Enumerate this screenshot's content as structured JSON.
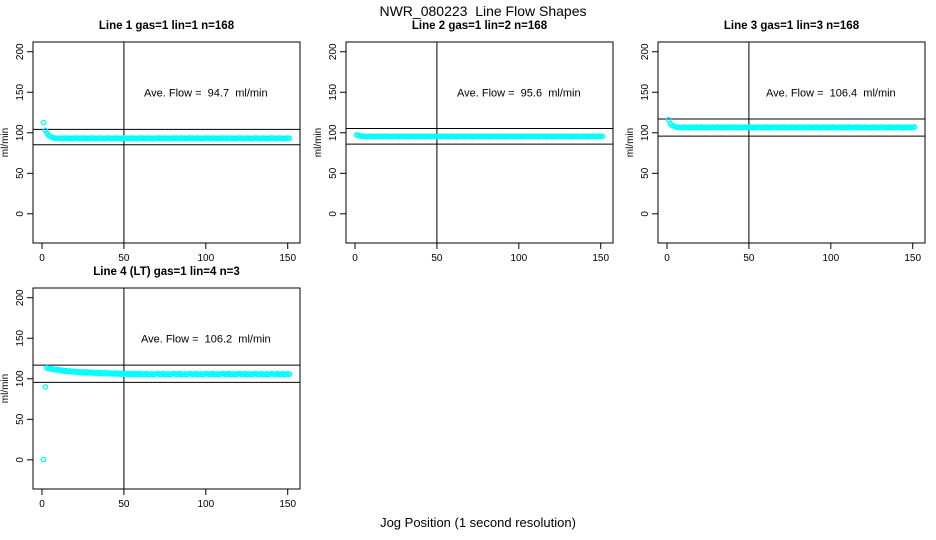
{
  "figure": {
    "title": "NWR_080223  Line Flow Shapes",
    "xlabel": "Jog Position (1 second resolution)",
    "ylabel": "ml/min",
    "point_color": "#00FFFF",
    "line_color": "#000000",
    "background": "#FFFFFF"
  },
  "chart_data": [
    {
      "type": "scatter",
      "title": "Line 1 gas=1 lin=1 n=168",
      "annotation": "Ave. Flow =  94.7  ml/min",
      "annotation_xy": [
        100,
        150
      ],
      "ave_flow": 94.7,
      "ylabel": "ml/min",
      "xlim": [
        -5.5,
        157.5
      ],
      "ylim": [
        -36,
        212
      ],
      "xticks": [
        0,
        50,
        100,
        150
      ],
      "yticks": [
        0,
        50,
        100,
        150,
        200
      ],
      "vline_x": 50,
      "ref_lines": [
        104.2,
        85.2
      ],
      "x_start": 1,
      "x_step": 1,
      "y": [
        112.5,
        103.0,
        99.5,
        97.0,
        95.5,
        94.5,
        93.8,
        93.4,
        93.1,
        92.9,
        93.0,
        93.4,
        92.7,
        93.2,
        93.6,
        92.8,
        93.3,
        92.6,
        93.1,
        93.5,
        93.0,
        93.4,
        92.7,
        93.2,
        93.6,
        92.8,
        93.3,
        92.6,
        93.1,
        93.5,
        93.0,
        93.4,
        92.7,
        93.2,
        93.6,
        92.8,
        93.3,
        92.6,
        93.1,
        93.5,
        93.0,
        93.4,
        92.7,
        93.2,
        93.6,
        92.8,
        93.3,
        92.6,
        93.1,
        93.5,
        93.0,
        93.4,
        92.7,
        93.2,
        93.6,
        92.8,
        93.3,
        92.6,
        93.1,
        93.5,
        93.0,
        93.4,
        92.7,
        93.2,
        93.6,
        92.8,
        93.3,
        92.6,
        93.1,
        93.5,
        93.0,
        93.4,
        92.7,
        93.2,
        93.6,
        92.8,
        93.3,
        92.6,
        93.1,
        93.5,
        93.0,
        93.4,
        92.7,
        93.2,
        93.6,
        92.8,
        93.3,
        92.6,
        93.1,
        93.5,
        93.0,
        93.4,
        92.7,
        93.2,
        93.6,
        92.8,
        93.3,
        92.6,
        93.1,
        93.5,
        93.0,
        93.4,
        92.7,
        93.2,
        93.6,
        92.8,
        93.3,
        92.6,
        93.1,
        93.5,
        93.0,
        93.4,
        92.7,
        93.2,
        93.6,
        92.8,
        93.3,
        92.6,
        93.1,
        93.5,
        93.0,
        93.4,
        92.7,
        93.2,
        93.6,
        92.8,
        93.3,
        92.6,
        93.1,
        93.5,
        93.0,
        93.4,
        92.7,
        93.2,
        93.6,
        92.8,
        93.3,
        92.6,
        93.1,
        93.5,
        93.0,
        93.4,
        92.7,
        93.2,
        93.6,
        92.8,
        93.3,
        92.6,
        93.1,
        93.5,
        93.0
      ]
    },
    {
      "type": "scatter",
      "title": "Line 2 gas=1 lin=2 n=168",
      "annotation": "Ave. Flow =  95.6  ml/min",
      "annotation_xy": [
        100,
        150
      ],
      "ave_flow": 95.6,
      "ylabel": "ml/min",
      "xlim": [
        -5.5,
        157.5
      ],
      "ylim": [
        -36,
        212
      ],
      "xticks": [
        0,
        50,
        100,
        150
      ],
      "yticks": [
        0,
        50,
        100,
        150,
        200
      ],
      "vline_x": 50,
      "ref_lines": [
        105.2,
        86.0
      ],
      "x_start": 1,
      "x_step": 1,
      "y": [
        97.2,
        96.6,
        96.2,
        95.9,
        95.5,
        95.8,
        95.3,
        95.6,
        95.9,
        95.4,
        95.7,
        95.2,
        95.5,
        95.8,
        95.5,
        95.8,
        95.3,
        95.6,
        95.9,
        95.4,
        95.7,
        95.2,
        95.5,
        95.8,
        95.5,
        95.8,
        95.3,
        95.6,
        95.9,
        95.4,
        95.7,
        95.2,
        95.5,
        95.8,
        95.5,
        95.8,
        95.3,
        95.6,
        95.9,
        95.4,
        95.7,
        95.2,
        95.5,
        95.8,
        95.5,
        95.8,
        95.3,
        95.6,
        95.9,
        95.4,
        95.7,
        95.2,
        95.5,
        95.8,
        95.5,
        95.8,
        95.3,
        95.6,
        95.9,
        95.4,
        95.7,
        95.2,
        95.5,
        95.8,
        95.5,
        95.8,
        95.3,
        95.6,
        95.9,
        95.4,
        95.7,
        95.2,
        95.5,
        95.8,
        95.5,
        95.8,
        95.3,
        95.6,
        95.9,
        95.4,
        95.7,
        95.2,
        95.5,
        95.8,
        95.5,
        95.8,
        95.3,
        95.6,
        95.9,
        95.4,
        95.7,
        95.2,
        95.5,
        95.8,
        95.5,
        95.8,
        95.3,
        95.6,
        95.9,
        95.4,
        95.7,
        95.2,
        95.5,
        95.8,
        95.5,
        95.8,
        95.3,
        95.6,
        95.9,
        95.4,
        95.7,
        95.2,
        95.5,
        95.8,
        95.5,
        95.8,
        95.3,
        95.6,
        95.9,
        95.4,
        95.7,
        95.2,
        95.5,
        95.8,
        95.5,
        95.8,
        95.3,
        95.6,
        95.9,
        95.4,
        95.7,
        95.2,
        95.5,
        95.8,
        95.5,
        95.8,
        95.3,
        95.6,
        95.9,
        95.4,
        95.7,
        95.2,
        95.5,
        95.8,
        95.5,
        95.8,
        95.3,
        95.6,
        95.9,
        95.4,
        95.7
      ]
    },
    {
      "type": "scatter",
      "title": "Line 3 gas=1 lin=3 n=168",
      "annotation": "Ave. Flow =  106.4  ml/min",
      "annotation_xy": [
        100,
        150
      ],
      "ave_flow": 106.4,
      "ylabel": "ml/min",
      "xlim": [
        -5.5,
        157.5
      ],
      "ylim": [
        -36,
        212
      ],
      "xticks": [
        0,
        50,
        100,
        150
      ],
      "yticks": [
        0,
        50,
        100,
        150,
        200
      ],
      "vline_x": 50,
      "ref_lines": [
        117.0,
        95.8
      ],
      "x_start": 1,
      "x_step": 1,
      "y": [
        116.0,
        111.5,
        109.5,
        108.3,
        107.5,
        107.0,
        106.5,
        106.9,
        106.2,
        106.7,
        107.1,
        106.3,
        106.8,
        106.1,
        106.6,
        107.0,
        106.5,
        106.9,
        106.2,
        106.7,
        107.1,
        106.3,
        106.8,
        106.1,
        106.6,
        107.0,
        106.5,
        106.9,
        106.2,
        106.7,
        107.1,
        106.3,
        106.8,
        106.1,
        106.6,
        107.0,
        106.5,
        106.9,
        106.2,
        106.7,
        107.1,
        106.3,
        106.8,
        106.1,
        106.6,
        107.0,
        106.5,
        106.9,
        106.2,
        106.7,
        107.1,
        106.3,
        106.8,
        106.1,
        106.6,
        107.0,
        106.5,
        106.9,
        106.2,
        106.7,
        107.1,
        106.3,
        106.8,
        106.1,
        106.6,
        107.0,
        106.5,
        106.9,
        106.2,
        106.7,
        107.1,
        106.3,
        106.8,
        106.1,
        106.6,
        107.0,
        106.5,
        106.9,
        106.2,
        106.7,
        107.1,
        106.3,
        106.8,
        106.1,
        106.6,
        107.0,
        106.5,
        106.9,
        106.2,
        106.7,
        107.1,
        106.3,
        106.8,
        106.1,
        106.6,
        107.0,
        106.5,
        106.9,
        106.2,
        106.7,
        107.1,
        106.3,
        106.8,
        106.1,
        106.6,
        107.0,
        106.5,
        106.9,
        106.2,
        106.7,
        107.1,
        106.3,
        106.8,
        106.1,
        106.6,
        107.0,
        106.5,
        106.9,
        106.2,
        106.7,
        107.1,
        106.3,
        106.8,
        106.1,
        106.6,
        107.0,
        106.5,
        106.9,
        106.2,
        106.7,
        107.1,
        106.3,
        106.8,
        106.1,
        106.6,
        107.0,
        106.5,
        106.9,
        106.2,
        106.7,
        107.1,
        106.3,
        106.8,
        106.1,
        106.6,
        107.0,
        106.5,
        106.9,
        106.2,
        106.7,
        107.1
      ]
    },
    {
      "type": "scatter",
      "title": "Line 4 (LT) gas=1 lin=4 n=3",
      "annotation": "Ave. Flow =  106.2  ml/min",
      "annotation_xy": [
        100,
        150
      ],
      "ave_flow": 106.2,
      "ylabel": "ml/min",
      "xlim": [
        -5.5,
        157.5
      ],
      "ylim": [
        -36,
        212
      ],
      "xticks": [
        0,
        50,
        100,
        150
      ],
      "yticks": [
        0,
        50,
        100,
        150,
        200
      ],
      "vline_x": 50,
      "ref_lines": [
        116.8,
        95.6
      ],
      "x_start": 1,
      "x_step": 1,
      "y": [
        0.3,
        90.0,
        113.5,
        112.4,
        112.8,
        111.6,
        112.0,
        111.0,
        111.4,
        110.6,
        110.9,
        109.6,
        110.4,
        109.2,
        110.0,
        108.9,
        109.7,
        108.6,
        109.3,
        108.3,
        108.9,
        107.9,
        108.6,
        107.6,
        108.3,
        107.4,
        108.7,
        107.2,
        108.0,
        107.1,
        107.9,
        106.9,
        107.6,
        106.7,
        108.0,
        106.5,
        107.3,
        106.4,
        107.7,
        106.3,
        107.1,
        106.1,
        106.9,
        105.9,
        107.3,
        105.8,
        106.6,
        105.7,
        107.0,
        105.6,
        106.7,
        105.5,
        106.4,
        105.4,
        106.9,
        105.3,
        106.2,
        105.2,
        106.6,
        105.1,
        106.3,
        105.0,
        105.8,
        106.5,
        104.9,
        105.5,
        106.1,
        104.8,
        105.7,
        106.4,
        106.3,
        105.0,
        105.8,
        106.5,
        104.9,
        105.5,
        106.1,
        104.8,
        105.7,
        106.4,
        106.3,
        105.0,
        105.8,
        106.5,
        104.9,
        105.5,
        106.1,
        104.8,
        105.7,
        106.4,
        106.3,
        105.0,
        105.8,
        106.5,
        104.9,
        105.5,
        106.1,
        104.8,
        105.7,
        106.4,
        106.3,
        105.0,
        105.8,
        106.5,
        104.9,
        105.5,
        106.1,
        104.8,
        105.7,
        106.4,
        106.3,
        105.0,
        105.8,
        106.5,
        104.9,
        105.5,
        106.1,
        104.8,
        105.7,
        106.4,
        106.3,
        105.0,
        105.8,
        106.5,
        104.9,
        105.5,
        106.1,
        104.8,
        105.7,
        106.4,
        106.3,
        105.0,
        105.8,
        106.5,
        104.9,
        105.5,
        106.1,
        104.8,
        105.7,
        106.4,
        106.3,
        105.0,
        105.8,
        106.5,
        104.9,
        105.5,
        106.1,
        104.8,
        105.7,
        106.4,
        105.5
      ]
    }
  ]
}
